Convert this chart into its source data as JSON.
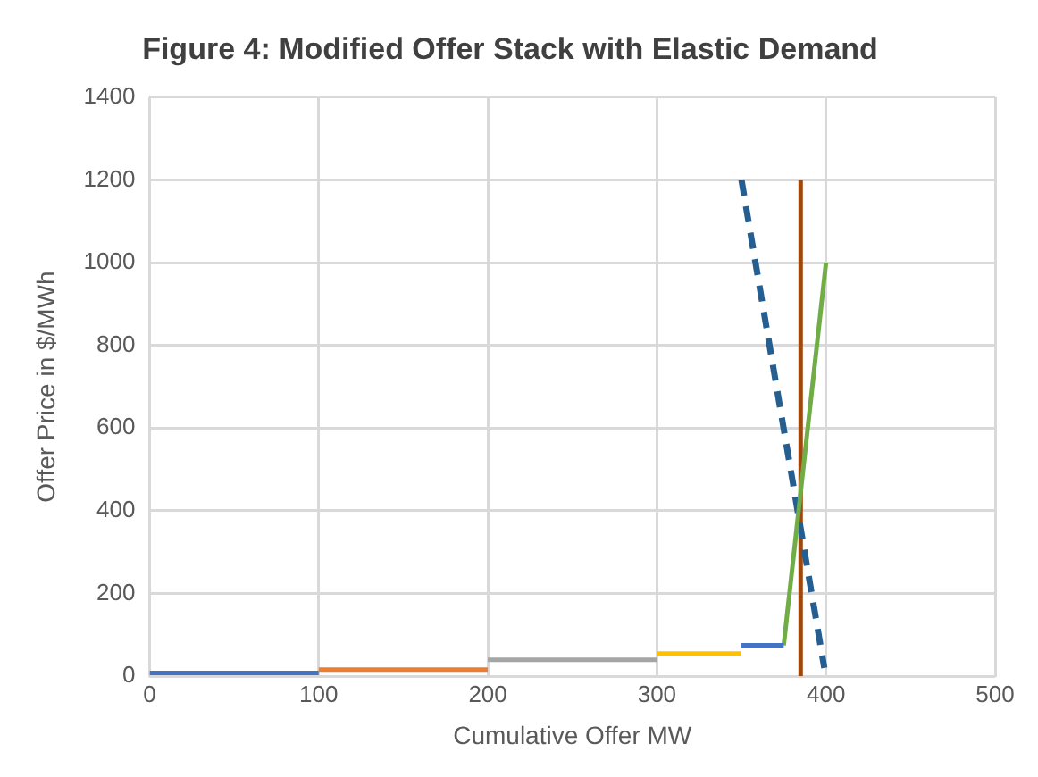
{
  "chart_data": {
    "type": "line",
    "title": "Figure 4: Modified Offer Stack with Elastic Demand",
    "xlabel": "Cumulative Offer MW",
    "ylabel": "Offer Price in $/MWh",
    "xlim": [
      0,
      500
    ],
    "xticks": [
      0,
      100,
      200,
      300,
      400,
      500
    ],
    "ylim": [
      0,
      1400
    ],
    "yticks": [
      0,
      200,
      400,
      600,
      800,
      1000,
      1200,
      1400
    ],
    "grid": true,
    "legend": false,
    "marker": "none",
    "series": [
      {
        "color": "#4472c4",
        "x": [
          0,
          100
        ],
        "values": [
          8,
          8
        ]
      },
      {
        "color": "#ed7d31",
        "x": [
          100,
          200
        ],
        "values": [
          16,
          16
        ]
      },
      {
        "color": "#a5a5a5",
        "x": [
          200,
          300
        ],
        "values": [
          40,
          40
        ]
      },
      {
        "color": "#ffc000",
        "x": [
          300,
          350
        ],
        "values": [
          55,
          55
        ]
      },
      {
        "color": "#4472c4",
        "x": [
          350,
          375
        ],
        "values": [
          75,
          75
        ]
      },
      {
        "color": "#70ad47",
        "x": [
          375,
          400
        ],
        "values": [
          75,
          1000
        ]
      },
      {
        "color": "#255e91",
        "x": [
          350,
          399
        ],
        "values": [
          1200,
          20
        ],
        "line_style": "dashed"
      },
      {
        "color": "#9e480e",
        "x": [
          385,
          385
        ],
        "values": [
          0,
          1200
        ]
      }
    ]
  }
}
